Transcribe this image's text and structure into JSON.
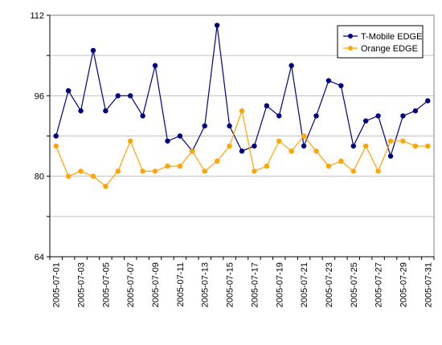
{
  "chart_data": {
    "type": "line",
    "title": "",
    "xlabel": "",
    "ylabel": "",
    "ylim": [
      64,
      112
    ],
    "yticks": [
      64,
      80,
      96,
      112
    ],
    "grid": true,
    "legend_position": "top-right",
    "x": [
      "2005-07-01",
      "2005-07-02",
      "2005-07-03",
      "2005-07-04",
      "2005-07-05",
      "2005-07-06",
      "2005-07-07",
      "2005-07-08",
      "2005-07-09",
      "2005-07-10",
      "2005-07-11",
      "2005-07-12",
      "2005-07-13",
      "2005-07-14",
      "2005-07-15",
      "2005-07-16",
      "2005-07-17",
      "2005-07-18",
      "2005-07-19",
      "2005-07-20",
      "2005-07-21",
      "2005-07-22",
      "2005-07-23",
      "2005-07-24",
      "2005-07-25",
      "2005-07-26",
      "2005-07-27",
      "2005-07-28",
      "2005-07-29",
      "2005-07-30",
      "2005-07-31"
    ],
    "x_tick_labels": [
      "2005-07-01",
      "2005-07-03",
      "2005-07-05",
      "2005-07-07",
      "2005-07-09",
      "2005-07-11",
      "2005-07-13",
      "2005-07-15",
      "2005-07-17",
      "2005-07-19",
      "2005-07-21",
      "2005-07-23",
      "2005-07-25",
      "2005-07-27",
      "2005-07-29",
      "2005-07-31"
    ],
    "series": [
      {
        "name": "T-Mobile EDGE",
        "color": "#000080",
        "values": [
          88,
          97,
          93,
          105,
          93,
          96,
          96,
          92,
          102,
          87,
          88,
          85,
          90,
          110,
          90,
          85,
          86,
          94,
          92,
          102,
          86,
          92,
          99,
          98,
          86,
          91,
          92,
          84,
          92,
          93,
          95
        ]
      },
      {
        "name": "Orange EDGE",
        "color": "#FFA500",
        "values": [
          86,
          80,
          81,
          80,
          78,
          81,
          87,
          81,
          81,
          82,
          82,
          85,
          81,
          83,
          86,
          93,
          81,
          82,
          87,
          85,
          88,
          85,
          82,
          83,
          81,
          86,
          81,
          87,
          87,
          86,
          86
        ]
      }
    ]
  }
}
